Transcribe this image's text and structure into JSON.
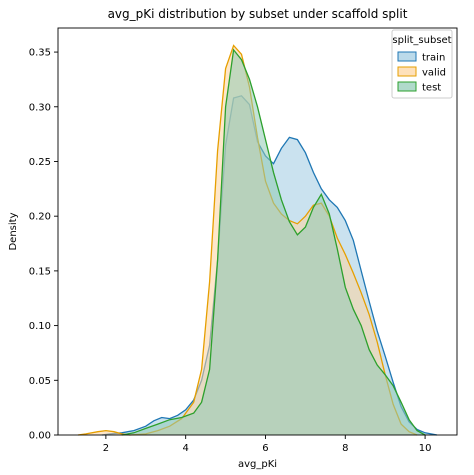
{
  "chart_data": {
    "type": "area",
    "title": "avg_pKi distribution by subset under scaffold split",
    "xlabel": "avg_pKi",
    "ylabel": "Density",
    "xlim": [
      0.8,
      10.8
    ],
    "ylim": [
      0,
      0.372
    ],
    "x_ticks": [
      "2",
      "4",
      "6",
      "8",
      "10"
    ],
    "y_ticks": [
      "0.00",
      "0.05",
      "0.10",
      "0.15",
      "0.20",
      "0.25",
      "0.30",
      "0.35"
    ],
    "legend": {
      "title": "split_subset",
      "position": "top-right"
    },
    "series": [
      {
        "name": "train",
        "color": "#1f77b4",
        "fill": "#9ecae1",
        "points": [
          [
            1.9,
            0.0
          ],
          [
            2.1,
            0.001
          ],
          [
            2.4,
            0.002
          ],
          [
            2.7,
            0.004
          ],
          [
            3.0,
            0.008
          ],
          [
            3.2,
            0.013
          ],
          [
            3.4,
            0.016
          ],
          [
            3.6,
            0.015
          ],
          [
            3.8,
            0.018
          ],
          [
            4.0,
            0.023
          ],
          [
            4.2,
            0.032
          ],
          [
            4.4,
            0.05
          ],
          [
            4.6,
            0.082
          ],
          [
            4.8,
            0.16
          ],
          [
            5.0,
            0.265
          ],
          [
            5.2,
            0.308
          ],
          [
            5.4,
            0.31
          ],
          [
            5.6,
            0.302
          ],
          [
            5.8,
            0.268
          ],
          [
            6.0,
            0.255
          ],
          [
            6.2,
            0.248
          ],
          [
            6.4,
            0.262
          ],
          [
            6.6,
            0.272
          ],
          [
            6.8,
            0.27
          ],
          [
            7.0,
            0.258
          ],
          [
            7.2,
            0.24
          ],
          [
            7.4,
            0.225
          ],
          [
            7.6,
            0.215
          ],
          [
            7.8,
            0.208
          ],
          [
            8.0,
            0.196
          ],
          [
            8.2,
            0.178
          ],
          [
            8.4,
            0.15
          ],
          [
            8.6,
            0.122
          ],
          [
            8.8,
            0.095
          ],
          [
            9.0,
            0.072
          ],
          [
            9.2,
            0.048
          ],
          [
            9.4,
            0.026
          ],
          [
            9.6,
            0.012
          ],
          [
            9.8,
            0.005
          ],
          [
            10.0,
            0.002
          ],
          [
            10.3,
            0.0
          ]
        ]
      },
      {
        "name": "valid",
        "color": "#e69f00",
        "fill": "#fdd49e",
        "points": [
          [
            1.3,
            0.0
          ],
          [
            1.5,
            0.001
          ],
          [
            1.8,
            0.003
          ],
          [
            2.0,
            0.004
          ],
          [
            2.2,
            0.003
          ],
          [
            2.4,
            0.001
          ],
          [
            2.6,
            0.0
          ],
          [
            3.0,
            0.001
          ],
          [
            3.3,
            0.004
          ],
          [
            3.6,
            0.008
          ],
          [
            3.9,
            0.015
          ],
          [
            4.2,
            0.03
          ],
          [
            4.4,
            0.06
          ],
          [
            4.6,
            0.14
          ],
          [
            4.8,
            0.26
          ],
          [
            5.0,
            0.335
          ],
          [
            5.2,
            0.356
          ],
          [
            5.4,
            0.348
          ],
          [
            5.6,
            0.318
          ],
          [
            5.8,
            0.272
          ],
          [
            6.0,
            0.232
          ],
          [
            6.2,
            0.212
          ],
          [
            6.4,
            0.202
          ],
          [
            6.6,
            0.196
          ],
          [
            6.8,
            0.193
          ],
          [
            7.0,
            0.2
          ],
          [
            7.2,
            0.21
          ],
          [
            7.4,
            0.212
          ],
          [
            7.6,
            0.2
          ],
          [
            7.8,
            0.18
          ],
          [
            8.0,
            0.165
          ],
          [
            8.2,
            0.148
          ],
          [
            8.4,
            0.13
          ],
          [
            8.6,
            0.11
          ],
          [
            8.8,
            0.085
          ],
          [
            9.0,
            0.055
          ],
          [
            9.2,
            0.028
          ],
          [
            9.4,
            0.01
          ],
          [
            9.6,
            0.003
          ],
          [
            9.8,
            0.0
          ]
        ]
      },
      {
        "name": "test",
        "color": "#2ca02c",
        "fill": "#8fcab5",
        "points": [
          [
            2.4,
            0.0
          ],
          [
            2.7,
            0.002
          ],
          [
            3.0,
            0.006
          ],
          [
            3.3,
            0.01
          ],
          [
            3.6,
            0.014
          ],
          [
            3.9,
            0.016
          ],
          [
            4.2,
            0.02
          ],
          [
            4.4,
            0.03
          ],
          [
            4.6,
            0.06
          ],
          [
            4.8,
            0.16
          ],
          [
            5.0,
            0.3
          ],
          [
            5.2,
            0.352
          ],
          [
            5.4,
            0.343
          ],
          [
            5.6,
            0.325
          ],
          [
            5.8,
            0.3
          ],
          [
            6.0,
            0.27
          ],
          [
            6.2,
            0.24
          ],
          [
            6.4,
            0.215
          ],
          [
            6.6,
            0.195
          ],
          [
            6.8,
            0.183
          ],
          [
            7.0,
            0.19
          ],
          [
            7.2,
            0.208
          ],
          [
            7.4,
            0.22
          ],
          [
            7.6,
            0.202
          ],
          [
            7.8,
            0.17
          ],
          [
            8.0,
            0.135
          ],
          [
            8.2,
            0.115
          ],
          [
            8.4,
            0.1
          ],
          [
            8.6,
            0.078
          ],
          [
            8.8,
            0.064
          ],
          [
            9.0,
            0.055
          ],
          [
            9.2,
            0.045
          ],
          [
            9.4,
            0.03
          ],
          [
            9.6,
            0.014
          ],
          [
            9.8,
            0.004
          ],
          [
            10.0,
            0.0
          ]
        ]
      }
    ]
  }
}
